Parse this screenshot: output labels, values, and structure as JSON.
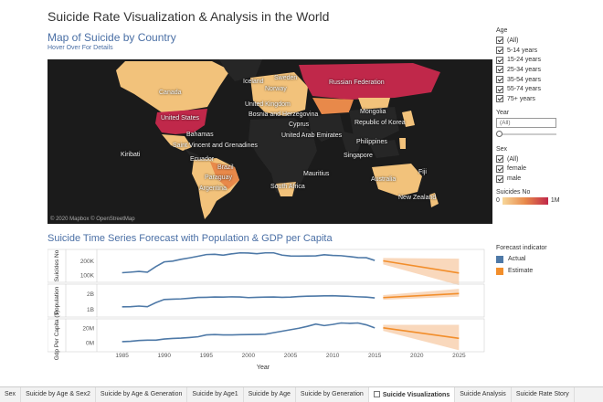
{
  "dashboard": {
    "title": "Suicide Rate Visualization & Analysis in the World"
  },
  "map": {
    "title": "Map of Suicide by Country",
    "subtitle": "Hover Over For Details",
    "attribution": "© 2020 Mapbox © OpenStreetMap",
    "countries": [
      "Canada",
      "United States",
      "Bahamas",
      "Saint Vincent and Grenadines",
      "Kiribati",
      "Ecuador",
      "Brazil",
      "Paraguay",
      "Argentina",
      "Iceland",
      "Norway",
      "Sweden",
      "United Kingdom",
      "Bosnia and Herzegovina",
      "Russian Federation",
      "Mongolia",
      "Republic of Korea",
      "Cyprus",
      "United Arab Emirates",
      "Philippines",
      "Singapore",
      "Mauritius",
      "South Africa",
      "Australia",
      "New Zealand",
      "Fiji",
      "Iceland"
    ],
    "colors": {
      "high": "#c0284a",
      "mid": "#e8894a",
      "low": "#f2c27b",
      "nodata": "#262626",
      "ocean": "#1b1b1b"
    }
  },
  "filters": {
    "age": {
      "header": "Age",
      "options": [
        "(All)",
        "5-14 years",
        "15-24 years",
        "25-34 years",
        "35-54 years",
        "55-74 years",
        "75+ years"
      ]
    },
    "year": {
      "header": "Year",
      "value": "(All)"
    },
    "sex": {
      "header": "Sex",
      "options": [
        "(All)",
        "female",
        "male"
      ]
    },
    "suicides": {
      "header": "Suicides No",
      "min": "0",
      "max": "1M"
    }
  },
  "timeseries": {
    "title": "Suicide Time Series Forecast with Population & GDP per Capita",
    "legend": {
      "header": "Forecast indicator",
      "items": [
        {
          "label": "Actual",
          "color": "#4e79a7"
        },
        {
          "label": "Estimate",
          "color": "#f28e2b"
        }
      ]
    },
    "xlabel": "Year",
    "xticks": [
      "1985",
      "1990",
      "1995",
      "2000",
      "2005",
      "2010",
      "2015",
      "2020",
      "2025"
    ]
  },
  "chart_data": [
    {
      "type": "line",
      "ylabel": "Suicides No",
      "yticks": [
        "200K",
        "100K"
      ],
      "ylim": [
        50000,
        280000
      ],
      "series": [
        {
          "name": "Actual",
          "x": [
            1985,
            1986,
            1987,
            1988,
            1989,
            1990,
            1991,
            1992,
            1993,
            1994,
            1995,
            1996,
            1997,
            1998,
            1999,
            2000,
            2001,
            2002,
            2003,
            2004,
            2005,
            2006,
            2007,
            2008,
            2009,
            2010,
            2011,
            2012,
            2013,
            2014,
            2015
          ],
          "values": [
            117000,
            121000,
            126000,
            121000,
            160000,
            193000,
            198000,
            211000,
            221000,
            232000,
            244000,
            246000,
            240000,
            249000,
            256000,
            255000,
            250000,
            256000,
            256000,
            240000,
            234000,
            233000,
            234000,
            235000,
            243000,
            238000,
            236000,
            230000,
            223000,
            222000,
            203000
          ]
        },
        {
          "name": "Estimate",
          "x": [
            2016,
            2025
          ],
          "values": [
            200000,
            115000
          ],
          "band_low": [
            175000,
            30000
          ],
          "band_high": [
            220000,
            215000
          ]
        }
      ]
    },
    {
      "type": "line",
      "ylabel": "Population",
      "yticks": [
        "2B",
        "1B"
      ],
      "ylim": [
        500000000,
        2600000000
      ],
      "series": [
        {
          "name": "Actual",
          "x": [
            1985,
            1986,
            1987,
            1988,
            1989,
            1990,
            1991,
            1992,
            1993,
            1994,
            1995,
            1996,
            1997,
            1998,
            1999,
            2000,
            2001,
            2002,
            2003,
            2004,
            2005,
            2006,
            2007,
            2008,
            2009,
            2010,
            2011,
            2012,
            2013,
            2014,
            2015
          ],
          "values": [
            1150000000,
            1160000000,
            1200000000,
            1160000000,
            1420000000,
            1620000000,
            1640000000,
            1660000000,
            1700000000,
            1750000000,
            1760000000,
            1780000000,
            1770000000,
            1790000000,
            1780000000,
            1740000000,
            1760000000,
            1770000000,
            1780000000,
            1760000000,
            1770000000,
            1810000000,
            1830000000,
            1840000000,
            1850000000,
            1860000000,
            1840000000,
            1820000000,
            1790000000,
            1770000000,
            1720000000
          ]
        },
        {
          "name": "Estimate",
          "x": [
            2016,
            2025
          ],
          "values": [
            1740000000,
            2000000000
          ],
          "band_low": [
            1600000000,
            1800000000
          ],
          "band_high": [
            1900000000,
            2300000000
          ]
        }
      ]
    },
    {
      "type": "line",
      "ylabel": "Gdp Per Capita ($)",
      "yticks": [
        "20M",
        "0M"
      ],
      "ylim": [
        -12000000,
        32000000
      ],
      "series": [
        {
          "name": "Actual",
          "x": [
            1985,
            1986,
            1987,
            1988,
            1989,
            1990,
            1991,
            1992,
            1993,
            1994,
            1995,
            1996,
            1997,
            1998,
            1999,
            2000,
            2001,
            2002,
            2003,
            2004,
            2005,
            2006,
            2007,
            2008,
            2009,
            2010,
            2011,
            2012,
            2013,
            2014,
            2015
          ],
          "values": [
            1500000,
            2000000,
            3000000,
            3500000,
            3500000,
            5000000,
            5800000,
            6200000,
            7000000,
            8000000,
            10500000,
            11000000,
            10500000,
            10500000,
            10800000,
            11000000,
            11200000,
            11500000,
            13500000,
            15500000,
            17500000,
            19500000,
            22000000,
            25000000,
            23000000,
            24500000,
            26500000,
            26000000,
            26500000,
            24000000,
            20000000
          ]
        },
        {
          "name": "Estimate",
          "x": [
            2016,
            2025
          ],
          "values": [
            20000000,
            6000000
          ],
          "band_low": [
            16000000,
            -10000000
          ],
          "band_high": [
            24000000,
            24000000
          ]
        }
      ]
    }
  ],
  "tabs": [
    {
      "label": "Sex",
      "active": false
    },
    {
      "label": "Suicide by Age & Sex2",
      "active": false
    },
    {
      "label": "Suicide by Age & Generation",
      "active": false
    },
    {
      "label": "Suicide by Age1",
      "active": false
    },
    {
      "label": "Suicide by Age",
      "active": false
    },
    {
      "label": "Suicide by Generation",
      "active": false
    },
    {
      "label": "Suicide Visualizations",
      "active": true
    },
    {
      "label": "Suicide Analysis",
      "active": false
    },
    {
      "label": "Suicide Rate Story",
      "active": false
    }
  ]
}
